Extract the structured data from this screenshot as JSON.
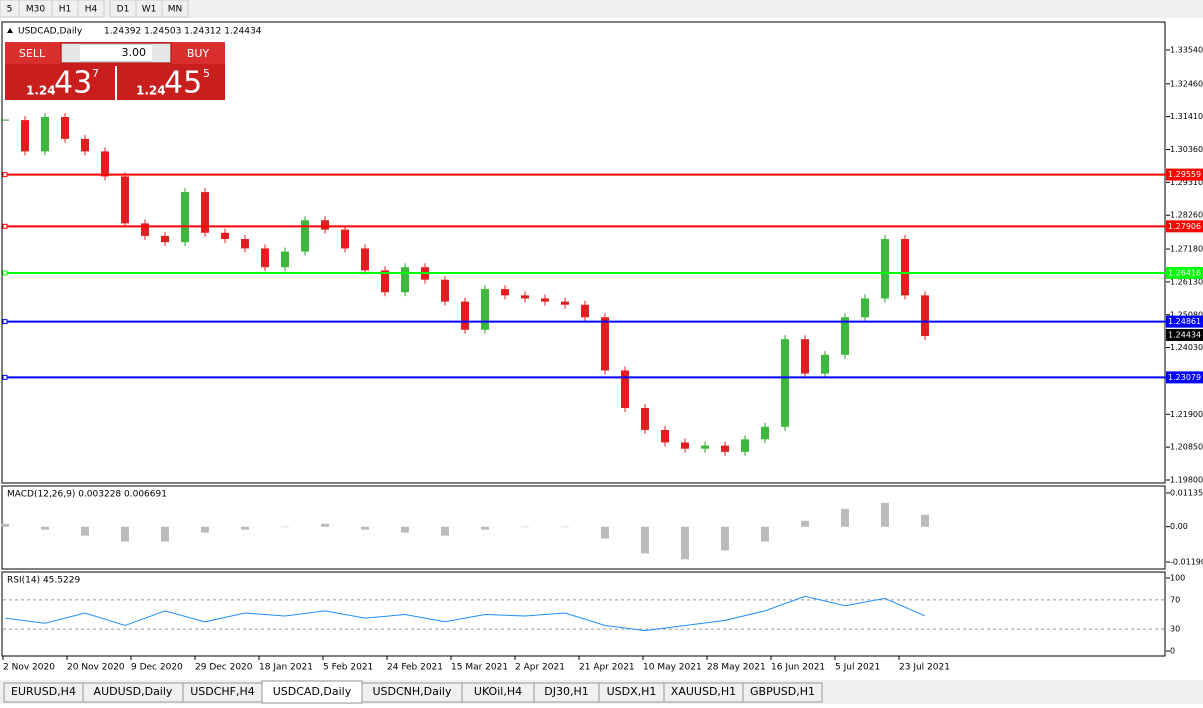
{
  "toolbar": [
    "5",
    "M30",
    "H1",
    "H4",
    "D1",
    "W1",
    "MN"
  ],
  "chart_data": {
    "type": "candlestick",
    "title": "USDCAD,Daily",
    "ohlc_header": "1.24392 1.24503 1.24312 1.24434",
    "closes": [
      1.313,
      1.303,
      1.314,
      1.307,
      1.303,
      1.295,
      1.28,
      1.276,
      1.274,
      1.29,
      1.277,
      1.275,
      1.272,
      1.266,
      1.271,
      1.281,
      1.278,
      1.272,
      1.265,
      1.258,
      1.266,
      1.262,
      1.255,
      1.246,
      1.259,
      1.257,
      1.256,
      1.255,
      1.254,
      1.25,
      1.233,
      1.221,
      1.214,
      1.21,
      1.208,
      1.209,
      1.207,
      1.211,
      1.215,
      1.243,
      1.232,
      1.238,
      1.25,
      1.256,
      1.275,
      1.257,
      1.244
    ],
    "ylim": [
      1.198,
      1.3354
    ],
    "yticks": [
      {
        "value": 1.3354,
        "label": "1.33540"
      },
      {
        "value": 1.3246,
        "label": "1.32460"
      },
      {
        "value": 1.3141,
        "label": "1.31410"
      },
      {
        "value": 1.3036,
        "label": "1.30360"
      },
      {
        "value": 1.2931,
        "label": "1.29310"
      },
      {
        "value": 1.2826,
        "label": "1.28260"
      },
      {
        "value": 1.2718,
        "label": "1.27180"
      },
      {
        "value": 1.2613,
        "label": "1.26130"
      },
      {
        "value": 1.2508,
        "label": "1.25080"
      },
      {
        "value": 1.2403,
        "label": "1.24030"
      },
      {
        "value": 1.219,
        "label": "1.21900"
      },
      {
        "value": 1.2085,
        "label": "1.20850"
      },
      {
        "value": 1.198,
        "label": "1.19800"
      }
    ],
    "levels": [
      {
        "value": 1.29559,
        "label": "1.29559",
        "color": "#ff0000"
      },
      {
        "value": 1.27906,
        "label": "1.27906",
        "color": "#ff0000"
      },
      {
        "value": 1.26416,
        "label": "1.26416",
        "color": "#00ff00"
      },
      {
        "value": 1.24861,
        "label": "1.24861",
        "color": "#0000ff"
      },
      {
        "value": 1.23079,
        "label": "1.23079",
        "color": "#0000ff"
      }
    ],
    "last_price": {
      "value": 1.24434,
      "label": "1.24434"
    },
    "date_labels": [
      "2 Nov 2020",
      "20 Nov 2020",
      "9 Dec 2020",
      "29 Dec 2020",
      "18 Jan 2021",
      "5 Feb 2021",
      "24 Feb 2021",
      "15 Mar 2021",
      "2 Apr 2021",
      "21 Apr 2021",
      "10 May 2021",
      "28 May 2021",
      "16 Jun 2021",
      "5 Jul 2021",
      "23 Jul 2021"
    ]
  },
  "trade_panel": {
    "sell": "SELL",
    "buy": "BUY",
    "lots": "3.00",
    "bid_prefix": "1.24",
    "bid_main": "43",
    "bid_pip": "7",
    "ask_prefix": "1.24",
    "ask_main": "45",
    "ask_pip": "5"
  },
  "macd": {
    "title": "MACD(12,26,9) 0.003228 0.006691",
    "ylim": [
      -0.0119,
      0.01135
    ],
    "yticks": [
      {
        "value": 0.01135,
        "label": "0.01135"
      },
      {
        "value": 0,
        "label": "0.00"
      },
      {
        "value": -0.0119,
        "label": "-0.01190"
      }
    ],
    "values": [
      0.001,
      -0.001,
      -0.003,
      -0.005,
      -0.005,
      -0.002,
      -0.001,
      0.0,
      0.001,
      -0.001,
      -0.002,
      -0.003,
      -0.001,
      0.0,
      0.0,
      -0.004,
      -0.009,
      -0.011,
      -0.008,
      -0.005,
      0.002,
      0.006,
      0.008,
      0.004
    ]
  },
  "rsi": {
    "title": "RSI(14) 45.5229",
    "ylim": [
      0,
      100
    ],
    "yticks": [
      100,
      70,
      30,
      0
    ],
    "values": [
      45,
      38,
      52,
      35,
      55,
      40,
      52,
      48,
      55,
      45,
      50,
      40,
      50,
      48,
      52,
      35,
      28,
      35,
      42,
      55,
      75,
      62,
      72,
      48
    ]
  },
  "tabs": [
    "EURUSD,H4",
    "AUDUSD,Daily",
    "USDCHF,H4",
    "USDCAD,Daily",
    "USDCNH,Daily",
    "UKOil,H4",
    "DJ30,H1",
    "USDX,H1",
    "XAUUSD,H1",
    "GBPUSD,H1"
  ]
}
